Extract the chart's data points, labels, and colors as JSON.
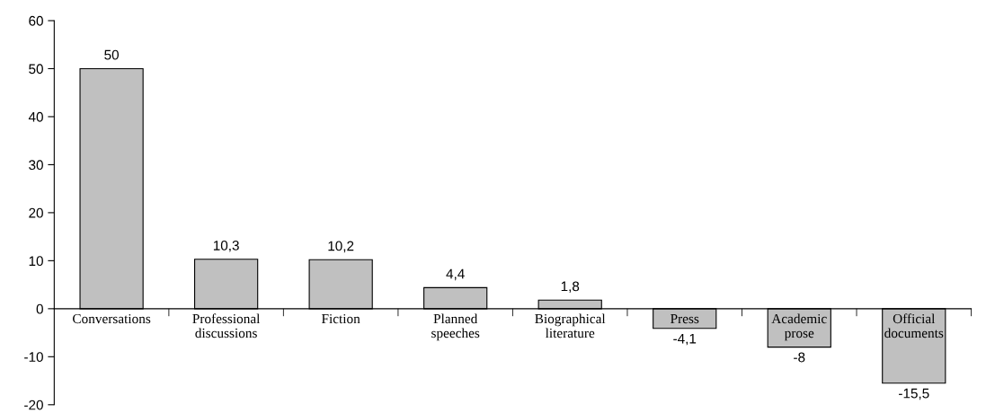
{
  "chart_data": {
    "type": "bar",
    "categories": [
      "Conversations",
      "Professional\ndiscussions",
      "Fiction",
      "Planned\nspeeches",
      "Biographical\nliterature",
      "Press",
      "Academic\nprose",
      "Official\ndocuments"
    ],
    "values": [
      50,
      10.3,
      10.2,
      4.4,
      1.8,
      -4.1,
      -8,
      -15.5
    ],
    "value_labels": [
      "50",
      "10,3",
      "10,2",
      "4,4",
      "1,8",
      "-4,1",
      "-8",
      "-15,5"
    ],
    "color": "#c0c0c0",
    "ylim": [
      -20,
      60
    ],
    "yticks": [
      -20,
      -10,
      0,
      10,
      20,
      30,
      40,
      50,
      60
    ],
    "grid": false,
    "legend": false
  }
}
